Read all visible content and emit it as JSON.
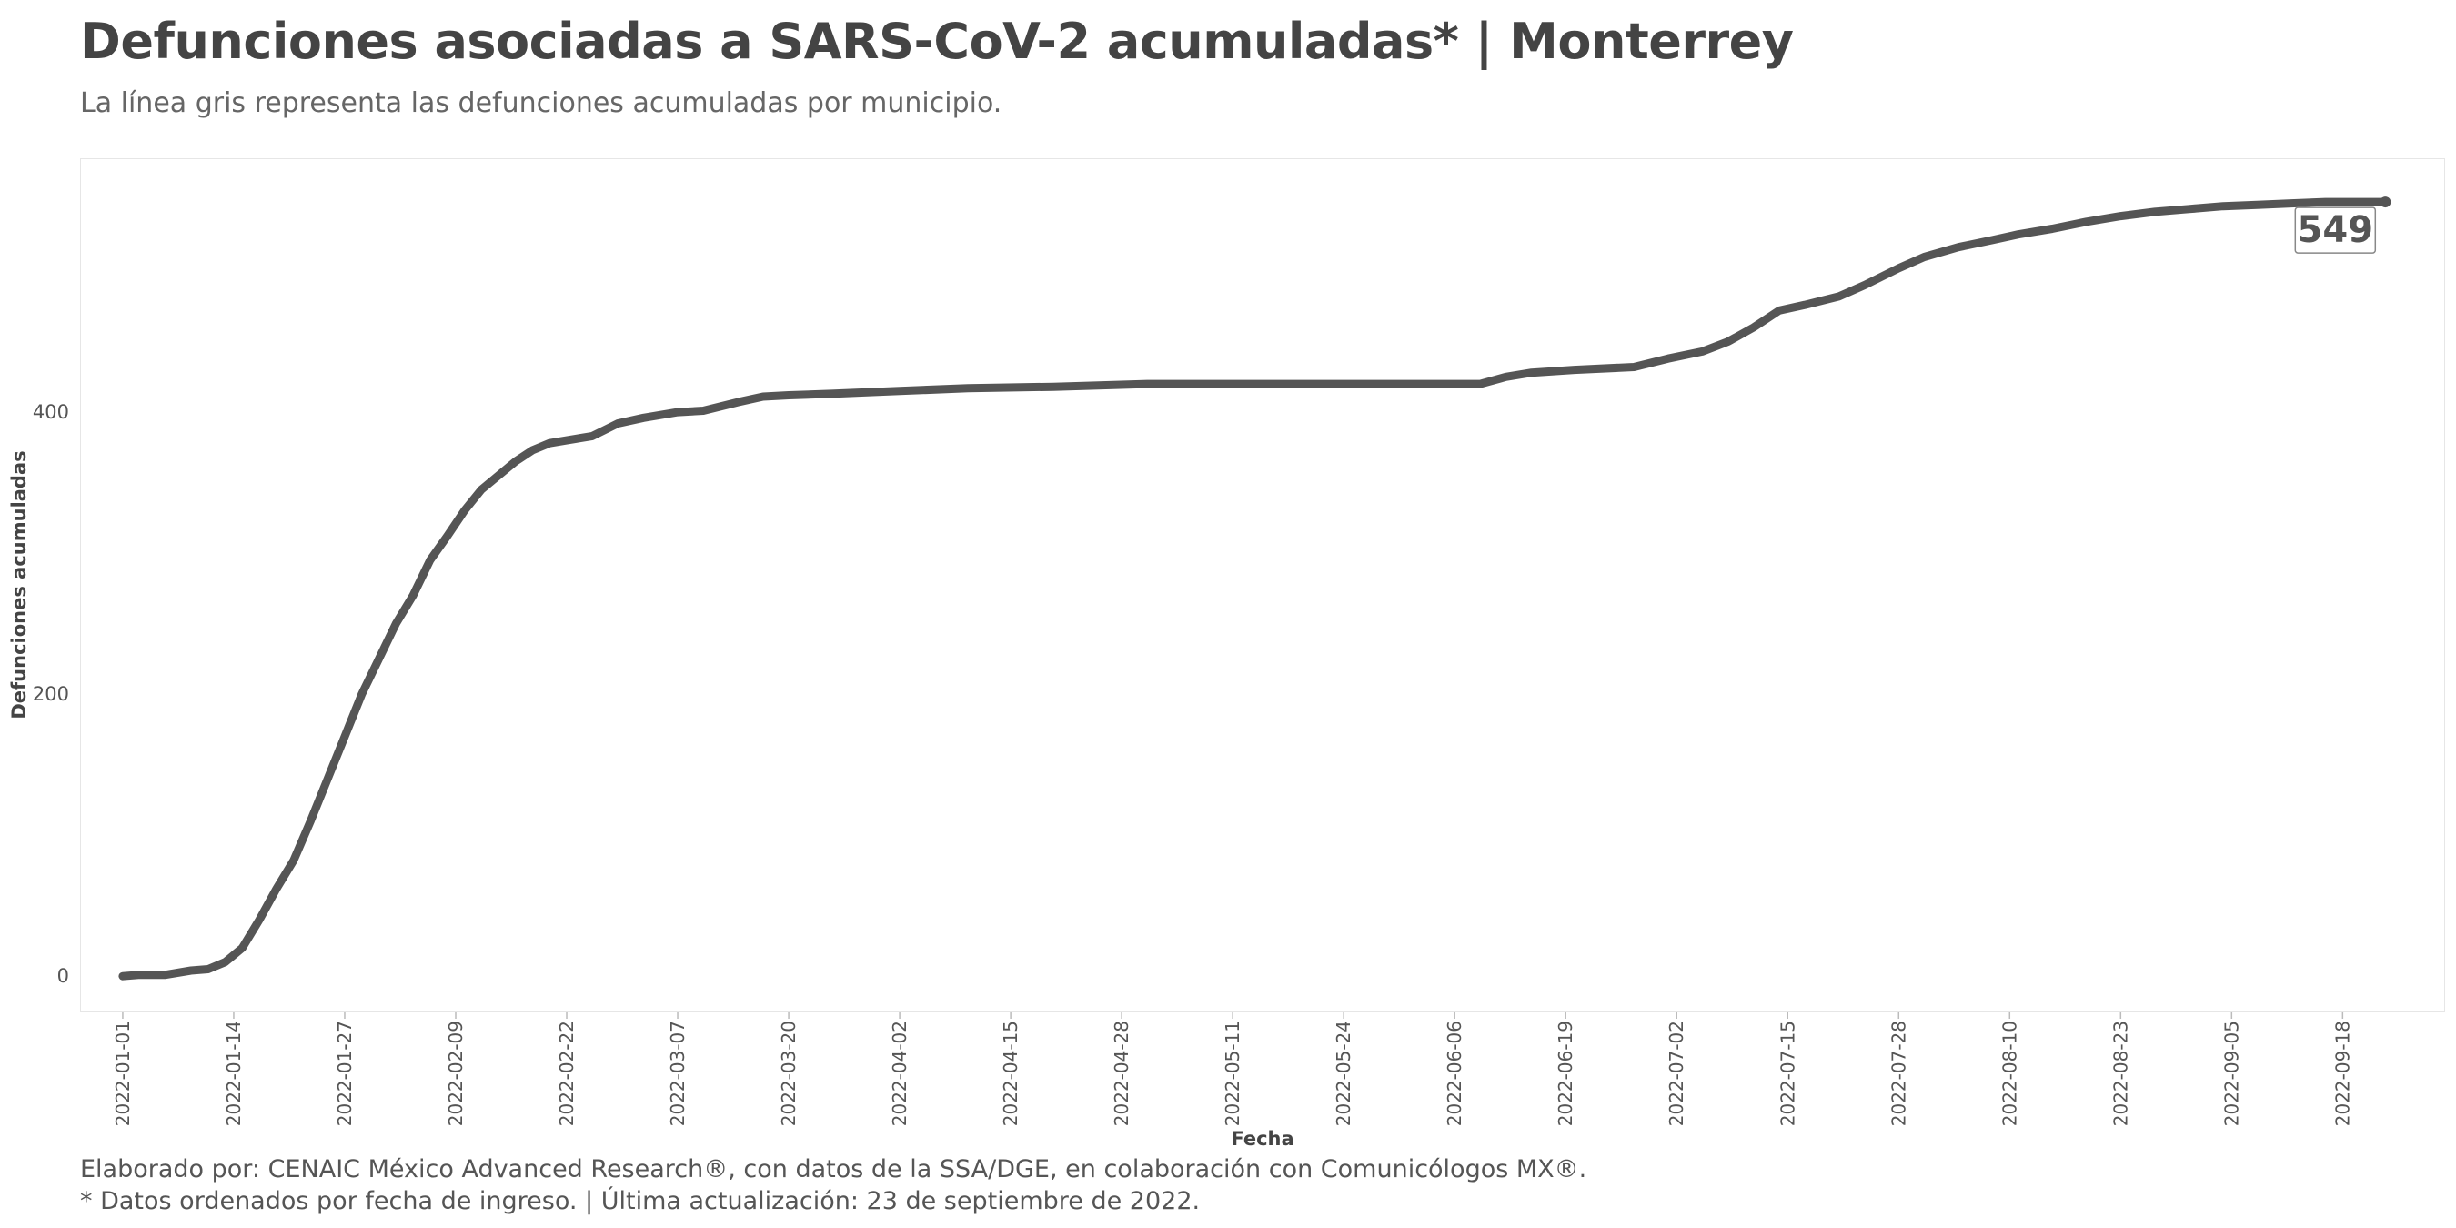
{
  "header": {
    "title": "Defunciones asociadas a SARS-CoV-2 acumuladas* | Monterrey",
    "subtitle": "La línea gris representa las defunciones acumuladas por municipio."
  },
  "footer": {
    "caption_line1": "Elaborado por: CENAIC México Advanced Research®, con datos de la SSA/DGE, en colaboración con Comunicólogos MX®.",
    "caption_line2": "* Datos ordenados por fecha de ingreso. | Última actualización: 23 de septiembre de 2022."
  },
  "colors": {
    "line": "#555555",
    "text": "#444444",
    "tick": "#555555"
  },
  "chart_data": {
    "type": "line",
    "xlabel": "Fecha",
    "ylabel": "Defunciones acumuladas",
    "ylim": [
      -25,
      580
    ],
    "yticks": [
      0,
      200,
      400
    ],
    "xlim": [
      "2021-12-27",
      "2022-09-30"
    ],
    "xticks": [
      "2022-01-01",
      "2022-01-14",
      "2022-01-27",
      "2022-02-09",
      "2022-02-22",
      "2022-03-07",
      "2022-03-20",
      "2022-04-02",
      "2022-04-15",
      "2022-04-28",
      "2022-05-11",
      "2022-05-24",
      "2022-06-06",
      "2022-06-19",
      "2022-07-02",
      "2022-07-15",
      "2022-07-28",
      "2022-08-10",
      "2022-08-23",
      "2022-09-05",
      "2022-09-18"
    ],
    "grid": false,
    "end_label": "549",
    "series": [
      {
        "points": [
          [
            "2022-01-01",
            0
          ],
          [
            "2022-01-03",
            1
          ],
          [
            "2022-01-06",
            1
          ],
          [
            "2022-01-09",
            4
          ],
          [
            "2022-01-11",
            5
          ],
          [
            "2022-01-13",
            10
          ],
          [
            "2022-01-15",
            20
          ],
          [
            "2022-01-17",
            40
          ],
          [
            "2022-01-19",
            62
          ],
          [
            "2022-01-21",
            82
          ],
          [
            "2022-01-23",
            110
          ],
          [
            "2022-01-25",
            140
          ],
          [
            "2022-01-27",
            170
          ],
          [
            "2022-01-29",
            200
          ],
          [
            "2022-01-31",
            225
          ],
          [
            "2022-02-02",
            250
          ],
          [
            "2022-02-04",
            270
          ],
          [
            "2022-02-06",
            295
          ],
          [
            "2022-02-08",
            312
          ],
          [
            "2022-02-10",
            330
          ],
          [
            "2022-02-12",
            345
          ],
          [
            "2022-02-14",
            355
          ],
          [
            "2022-02-16",
            365
          ],
          [
            "2022-02-18",
            373
          ],
          [
            "2022-02-20",
            378
          ],
          [
            "2022-02-22",
            380
          ],
          [
            "2022-02-25",
            383
          ],
          [
            "2022-02-28",
            392
          ],
          [
            "2022-03-03",
            396
          ],
          [
            "2022-03-07",
            400
          ],
          [
            "2022-03-10",
            401
          ],
          [
            "2022-03-14",
            407
          ],
          [
            "2022-03-17",
            411
          ],
          [
            "2022-03-20",
            412
          ],
          [
            "2022-03-25",
            413
          ],
          [
            "2022-04-02",
            415
          ],
          [
            "2022-04-10",
            417
          ],
          [
            "2022-04-20",
            418
          ],
          [
            "2022-05-01",
            420
          ],
          [
            "2022-05-15",
            420
          ],
          [
            "2022-06-01",
            420
          ],
          [
            "2022-06-09",
            420
          ],
          [
            "2022-06-12",
            425
          ],
          [
            "2022-06-15",
            428
          ],
          [
            "2022-06-20",
            430
          ],
          [
            "2022-06-27",
            432
          ],
          [
            "2022-07-01",
            438
          ],
          [
            "2022-07-05",
            443
          ],
          [
            "2022-07-08",
            450
          ],
          [
            "2022-07-11",
            460
          ],
          [
            "2022-07-14",
            472
          ],
          [
            "2022-07-17",
            476
          ],
          [
            "2022-07-21",
            482
          ],
          [
            "2022-07-24",
            490
          ],
          [
            "2022-07-28",
            502
          ],
          [
            "2022-07-31",
            510
          ],
          [
            "2022-08-04",
            517
          ],
          [
            "2022-08-08",
            522
          ],
          [
            "2022-08-11",
            526
          ],
          [
            "2022-08-15",
            530
          ],
          [
            "2022-08-19",
            535
          ],
          [
            "2022-08-23",
            539
          ],
          [
            "2022-08-27",
            542
          ],
          [
            "2022-08-31",
            544
          ],
          [
            "2022-09-04",
            546
          ],
          [
            "2022-09-08",
            547
          ],
          [
            "2022-09-12",
            548
          ],
          [
            "2022-09-16",
            549
          ],
          [
            "2022-09-23",
            549
          ]
        ]
      }
    ]
  }
}
